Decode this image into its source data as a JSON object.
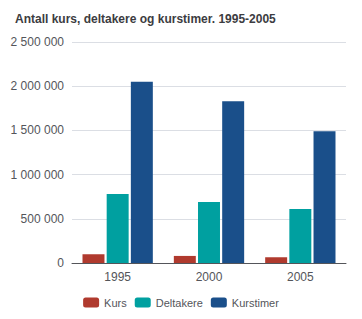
{
  "chart_data": {
    "type": "bar",
    "title": "Antall kurs, deltakere og kurstimer. 1995-2005",
    "categories": [
      "1995",
      "2000",
      "2005"
    ],
    "series": [
      {
        "name": "Kurs",
        "color": "#b03a2e",
        "values": [
          100000,
          80000,
          65000
        ]
      },
      {
        "name": "Deltakere",
        "color": "#00a0a0",
        "values": [
          780000,
          690000,
          610000
        ]
      },
      {
        "name": "Kurstimer",
        "color": "#1a4f8a",
        "values": [
          2050000,
          1830000,
          1490000
        ]
      }
    ],
    "ylim": [
      0,
      2500000
    ],
    "yticks": [
      0,
      {
        "value": 500000,
        "label": "500 000"
      },
      {
        "value": 1000000,
        "label": "1 000 000"
      },
      {
        "value": 1500000,
        "label": "1 500 000"
      },
      {
        "value": 2000000,
        "label": "2 000 000"
      },
      {
        "value": 2500000,
        "label": "2 500 000"
      }
    ],
    "grid": true,
    "legend": "bottom"
  }
}
